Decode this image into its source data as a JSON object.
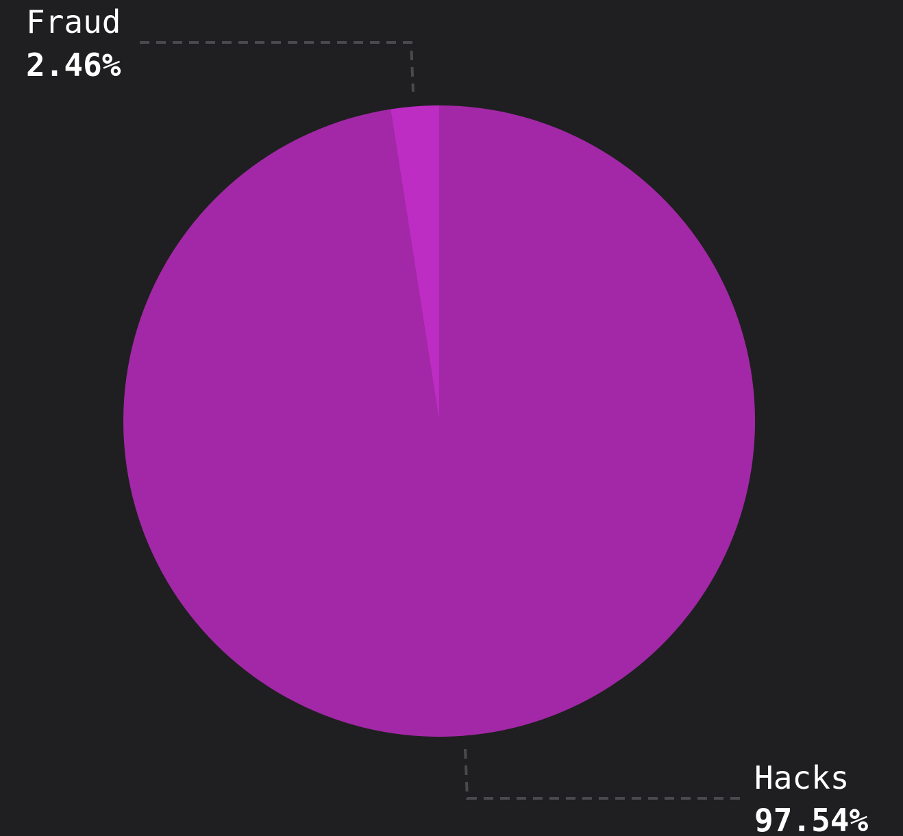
{
  "chart_data": {
    "type": "pie",
    "title": "",
    "start_angle_deg": 0,
    "direction": "counterclockwise",
    "slices": [
      {
        "name": "Hacks",
        "value": 97.54,
        "value_label": "97.54%",
        "color": "#a328a7"
      },
      {
        "name": "Fraud",
        "value": 2.46,
        "value_label": "2.46%",
        "color": "#bd2cc3"
      }
    ],
    "legend": "none",
    "background_color": "#1f1f21",
    "text_color": "#ffffff",
    "leader_line_color": "#4a4a4e"
  }
}
